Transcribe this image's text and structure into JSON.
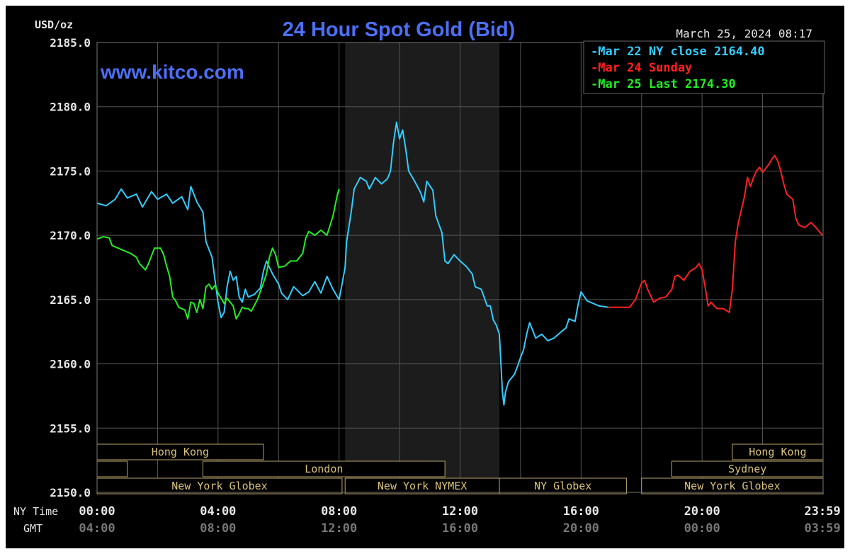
{
  "header": {
    "unit": "USD/oz",
    "title": "24 Hour Spot Gold (Bid)",
    "timestamp": "March 25, 2024 08:17",
    "watermark": "www.kitco.com"
  },
  "legend": {
    "items": [
      {
        "label": "-Mar 22 NY close 2164.40",
        "color": "#33ccff"
      },
      {
        "label": "-Mar 24 Sunday",
        "color": "#ff2020"
      },
      {
        "label": "-Mar 25 Last 2174.30",
        "color": "#22ee22"
      }
    ]
  },
  "axis_labels": {
    "ny_time": "NY Time",
    "gmt": "GMT"
  },
  "sessions": {
    "upper": [
      {
        "label": "Hong Kong",
        "start": 0,
        "end": 5.5,
        "row": 0
      },
      {
        "label": "",
        "start": 0,
        "end": 1,
        "row": 1
      },
      {
        "label": "London",
        "start": 3.5,
        "end": 11.5,
        "row": 1
      },
      {
        "label": "New York Globex",
        "start": 0,
        "end": 8.1,
        "row": 2
      },
      {
        "label": "New York NYMEX",
        "start": 8.2,
        "end": 13.3,
        "row": 2
      },
      {
        "label": "NY Globex",
        "start": 13.3,
        "end": 17.5,
        "row": 2
      },
      {
        "label": "Hong Kong",
        "start": 21.0,
        "end": 24,
        "row": 0
      },
      {
        "label": "Sydney",
        "start": 19.0,
        "end": 24,
        "row": 1
      },
      {
        "label": "New York Globex",
        "start": 18.0,
        "end": 24,
        "row": 2
      }
    ]
  },
  "chart_data": {
    "type": "line",
    "title": "24 Hour Spot Gold (Bid)",
    "ylabel": "USD/oz",
    "ylim": [
      2150.0,
      2185.0
    ],
    "xlim": [
      0,
      24
    ],
    "y_ticks": [
      "2185.0",
      "2180.0",
      "2175.0",
      "2170.0",
      "2165.0",
      "2160.0",
      "2155.0",
      "2150.0"
    ],
    "y_tick_values": [
      2185,
      2180,
      2175,
      2170,
      2165,
      2160,
      2155,
      2150
    ],
    "x_ticks_ny": [
      "00:00",
      "04:00",
      "08:00",
      "12:00",
      "16:00",
      "20:00",
      "23:59"
    ],
    "x_ticks_gmt": [
      "04:00",
      "08:00",
      "12:00",
      "16:00",
      "20:00",
      "00:00",
      "03:59"
    ],
    "x_tick_values": [
      0,
      4,
      8,
      12,
      16,
      20,
      23.98
    ],
    "grid": true,
    "shaded_region": [
      8.2,
      13.3
    ],
    "series": [
      {
        "name": "Mar 22 NY close 2164.40",
        "color": "#33ccff",
        "points": [
          [
            0.0,
            2172.5
          ],
          [
            0.3,
            2172.3
          ],
          [
            0.6,
            2172.8
          ],
          [
            0.8,
            2173.6
          ],
          [
            1.0,
            2172.9
          ],
          [
            1.3,
            2173.2
          ],
          [
            1.5,
            2172.2
          ],
          [
            1.8,
            2173.4
          ],
          [
            2.0,
            2172.8
          ],
          [
            2.3,
            2173.2
          ],
          [
            2.5,
            2172.5
          ],
          [
            2.8,
            2173.0
          ],
          [
            3.0,
            2172.0
          ],
          [
            3.1,
            2173.8
          ],
          [
            3.3,
            2172.6
          ],
          [
            3.5,
            2171.8
          ],
          [
            3.6,
            2169.5
          ],
          [
            3.8,
            2168.3
          ],
          [
            3.9,
            2166.5
          ],
          [
            4.0,
            2164.8
          ],
          [
            4.1,
            2163.6
          ],
          [
            4.2,
            2164.0
          ],
          [
            4.3,
            2166.0
          ],
          [
            4.4,
            2167.2
          ],
          [
            4.5,
            2166.5
          ],
          [
            4.6,
            2166.8
          ],
          [
            4.7,
            2165.2
          ],
          [
            4.8,
            2164.8
          ],
          [
            4.9,
            2165.8
          ],
          [
            5.0,
            2165.2
          ],
          [
            5.2,
            2165.4
          ],
          [
            5.4,
            2165.9
          ],
          [
            5.5,
            2167.2
          ],
          [
            5.6,
            2168.0
          ],
          [
            5.8,
            2167.0
          ],
          [
            6.0,
            2166.2
          ],
          [
            6.1,
            2165.5
          ],
          [
            6.3,
            2165.0
          ],
          [
            6.5,
            2166.0
          ],
          [
            6.8,
            2165.3
          ],
          [
            7.0,
            2165.6
          ],
          [
            7.2,
            2166.4
          ],
          [
            7.4,
            2165.5
          ],
          [
            7.6,
            2166.8
          ],
          [
            7.8,
            2165.8
          ],
          [
            8.0,
            2165.0
          ],
          [
            8.1,
            2166.2
          ],
          [
            8.2,
            2167.5
          ],
          [
            8.25,
            2169.5
          ],
          [
            8.4,
            2171.8
          ],
          [
            8.5,
            2173.6
          ],
          [
            8.7,
            2174.5
          ],
          [
            8.9,
            2174.2
          ],
          [
            9.0,
            2173.6
          ],
          [
            9.2,
            2174.5
          ],
          [
            9.4,
            2174.0
          ],
          [
            9.6,
            2174.4
          ],
          [
            9.7,
            2175.0
          ],
          [
            9.8,
            2177.2
          ],
          [
            9.9,
            2178.8
          ],
          [
            10.0,
            2177.5
          ],
          [
            10.1,
            2178.2
          ],
          [
            10.2,
            2176.8
          ],
          [
            10.3,
            2175.0
          ],
          [
            10.5,
            2174.2
          ],
          [
            10.7,
            2173.3
          ],
          [
            10.8,
            2172.6
          ],
          [
            10.9,
            2174.2
          ],
          [
            11.1,
            2173.5
          ],
          [
            11.2,
            2171.5
          ],
          [
            11.4,
            2170.2
          ],
          [
            11.5,
            2168.0
          ],
          [
            11.6,
            2167.8
          ],
          [
            11.8,
            2168.5
          ],
          [
            12.0,
            2168.0
          ],
          [
            12.2,
            2167.6
          ],
          [
            12.4,
            2167.0
          ],
          [
            12.5,
            2166.0
          ],
          [
            12.7,
            2165.8
          ],
          [
            12.9,
            2164.5
          ],
          [
            13.0,
            2164.5
          ],
          [
            13.1,
            2163.4
          ],
          [
            13.2,
            2163.0
          ],
          [
            13.3,
            2162.3
          ],
          [
            13.35,
            2160.0
          ],
          [
            13.4,
            2157.8
          ],
          [
            13.45,
            2156.8
          ],
          [
            13.5,
            2157.8
          ],
          [
            13.6,
            2158.6
          ],
          [
            13.8,
            2159.2
          ],
          [
            13.9,
            2159.8
          ],
          [
            14.0,
            2160.5
          ],
          [
            14.1,
            2161.1
          ],
          [
            14.2,
            2162.3
          ],
          [
            14.3,
            2163.2
          ],
          [
            14.4,
            2162.6
          ],
          [
            14.5,
            2162.0
          ],
          [
            14.7,
            2162.3
          ],
          [
            14.9,
            2161.8
          ],
          [
            15.1,
            2162.0
          ],
          [
            15.3,
            2162.4
          ],
          [
            15.5,
            2162.8
          ],
          [
            15.6,
            2163.5
          ],
          [
            15.8,
            2163.3
          ],
          [
            15.9,
            2164.6
          ],
          [
            16.0,
            2165.6
          ],
          [
            16.2,
            2164.9
          ],
          [
            16.4,
            2164.7
          ],
          [
            16.6,
            2164.5
          ],
          [
            16.9,
            2164.4
          ]
        ]
      },
      {
        "name": "Mar 24 Sunday",
        "color": "#ff2020",
        "points": [
          [
            16.9,
            2164.4
          ],
          [
            17.2,
            2164.4
          ],
          [
            17.5,
            2164.4
          ],
          [
            17.6,
            2164.4
          ],
          [
            17.8,
            2165.0
          ],
          [
            18.0,
            2166.3
          ],
          [
            18.1,
            2166.5
          ],
          [
            18.2,
            2165.8
          ],
          [
            18.4,
            2164.8
          ],
          [
            18.6,
            2165.1
          ],
          [
            18.8,
            2165.2
          ],
          [
            19.0,
            2165.8
          ],
          [
            19.1,
            2166.8
          ],
          [
            19.2,
            2166.9
          ],
          [
            19.4,
            2166.5
          ],
          [
            19.6,
            2167.2
          ],
          [
            19.8,
            2167.5
          ],
          [
            19.9,
            2167.8
          ],
          [
            20.0,
            2167.3
          ],
          [
            20.1,
            2166.0
          ],
          [
            20.2,
            2164.5
          ],
          [
            20.3,
            2164.8
          ],
          [
            20.4,
            2164.5
          ],
          [
            20.5,
            2164.3
          ],
          [
            20.7,
            2164.3
          ],
          [
            20.9,
            2164.0
          ],
          [
            21.0,
            2165.8
          ],
          [
            21.1,
            2169.5
          ],
          [
            21.2,
            2171.0
          ],
          [
            21.3,
            2172.0
          ],
          [
            21.4,
            2173.0
          ],
          [
            21.5,
            2174.5
          ],
          [
            21.6,
            2173.8
          ],
          [
            21.7,
            2174.5
          ],
          [
            21.8,
            2175.0
          ],
          [
            21.9,
            2175.3
          ],
          [
            22.0,
            2174.9
          ],
          [
            22.1,
            2175.2
          ],
          [
            22.2,
            2175.5
          ],
          [
            22.3,
            2175.9
          ],
          [
            22.4,
            2176.2
          ],
          [
            22.5,
            2175.8
          ],
          [
            22.6,
            2175.0
          ],
          [
            22.7,
            2174.0
          ],
          [
            22.8,
            2173.2
          ],
          [
            23.0,
            2172.8
          ],
          [
            23.1,
            2171.3
          ],
          [
            23.2,
            2170.8
          ],
          [
            23.4,
            2170.6
          ],
          [
            23.6,
            2171.0
          ],
          [
            23.8,
            2170.5
          ],
          [
            23.98,
            2170.0
          ]
        ]
      },
      {
        "name": "Mar 25 Last 2174.30",
        "color": "#22ee22",
        "points": [
          [
            0.0,
            2169.7
          ],
          [
            0.2,
            2169.9
          ],
          [
            0.4,
            2169.8
          ],
          [
            0.5,
            2169.2
          ],
          [
            0.7,
            2169.0
          ],
          [
            0.9,
            2168.8
          ],
          [
            1.1,
            2168.6
          ],
          [
            1.3,
            2168.3
          ],
          [
            1.4,
            2167.8
          ],
          [
            1.6,
            2167.3
          ],
          [
            1.7,
            2167.8
          ],
          [
            1.9,
            2169.0
          ],
          [
            2.1,
            2169.0
          ],
          [
            2.2,
            2168.5
          ],
          [
            2.3,
            2167.6
          ],
          [
            2.4,
            2166.8
          ],
          [
            2.5,
            2165.2
          ],
          [
            2.6,
            2164.9
          ],
          [
            2.7,
            2164.4
          ],
          [
            2.9,
            2164.2
          ],
          [
            3.0,
            2163.5
          ],
          [
            3.1,
            2164.8
          ],
          [
            3.2,
            2164.7
          ],
          [
            3.3,
            2164.0
          ],
          [
            3.4,
            2165.0
          ],
          [
            3.5,
            2164.3
          ],
          [
            3.6,
            2166.0
          ],
          [
            3.7,
            2166.2
          ],
          [
            3.8,
            2165.8
          ],
          [
            3.9,
            2166.1
          ],
          [
            4.0,
            2165.5
          ],
          [
            4.2,
            2164.7
          ],
          [
            4.3,
            2165.1
          ],
          [
            4.5,
            2164.5
          ],
          [
            4.6,
            2163.5
          ],
          [
            4.7,
            2163.9
          ],
          [
            4.8,
            2164.4
          ],
          [
            4.9,
            2164.3
          ],
          [
            5.0,
            2164.3
          ],
          [
            5.1,
            2164.1
          ],
          [
            5.3,
            2165.0
          ],
          [
            5.5,
            2166.3
          ],
          [
            5.6,
            2167.0
          ],
          [
            5.7,
            2168.3
          ],
          [
            5.8,
            2169.0
          ],
          [
            5.9,
            2168.5
          ],
          [
            6.0,
            2167.5
          ],
          [
            6.2,
            2167.6
          ],
          [
            6.4,
            2168.0
          ],
          [
            6.6,
            2168.0
          ],
          [
            6.8,
            2168.6
          ],
          [
            6.9,
            2169.8
          ],
          [
            7.0,
            2170.3
          ],
          [
            7.2,
            2170.0
          ],
          [
            7.4,
            2170.4
          ],
          [
            7.6,
            2170.0
          ],
          [
            7.8,
            2171.5
          ],
          [
            7.95,
            2173.2
          ],
          [
            8.0,
            2173.6
          ]
        ]
      }
    ]
  }
}
